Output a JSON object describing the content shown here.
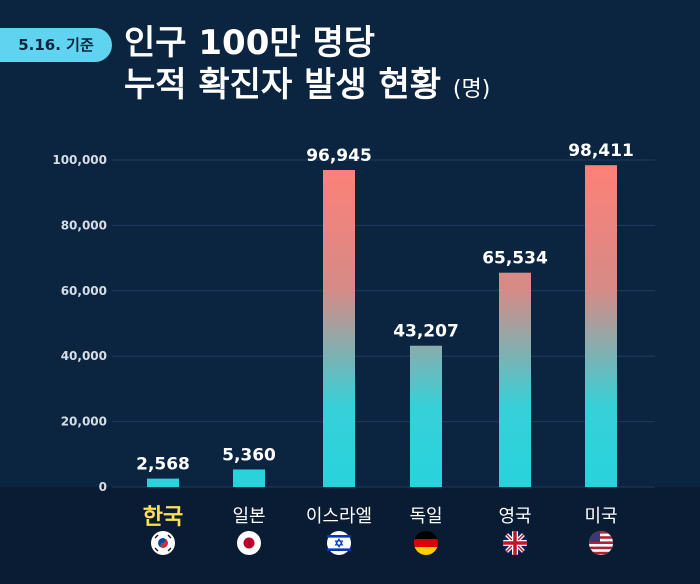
{
  "badge": "5.16. 기준",
  "title": {
    "line1": "인구 100만 명당",
    "line2": "누적 확진자 발생 현황",
    "unit": "(명)"
  },
  "chart_data": {
    "type": "bar",
    "categories": [
      "한국",
      "일본",
      "이스라엘",
      "독일",
      "영국",
      "미국"
    ],
    "values": [
      2568,
      5360,
      96945,
      43207,
      65534,
      98411
    ],
    "value_labels": [
      "2,568",
      "5,360",
      "96,945",
      "43,207",
      "65,534",
      "98,411"
    ],
    "highlight_category": "한국",
    "ylim": [
      0,
      100000
    ],
    "y_ticks": [
      0,
      20000,
      40000,
      60000,
      80000,
      100000
    ],
    "y_tick_labels": [
      "0",
      "20,000",
      "40,000",
      "60,000",
      "80,000",
      "100,000"
    ],
    "grid": true,
    "flags": [
      "south-korea-flag-icon",
      "japan-flag-icon",
      "israel-flag-icon",
      "germany-flag-icon",
      "uk-flag-icon",
      "usa-flag-icon"
    ],
    "colors": {
      "background": "#0b2440",
      "bar_bottom": "#27d3dd",
      "bar_top": "#ff8077",
      "grid": "#1f3b5c",
      "highlight_text": "#ffe14d"
    }
  }
}
